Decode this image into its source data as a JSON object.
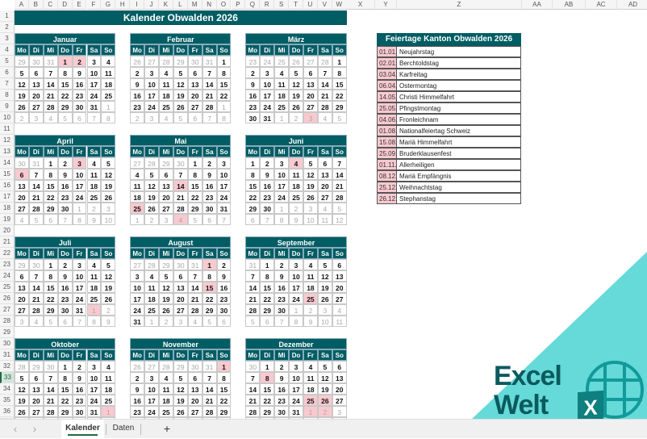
{
  "columns": [
    "A",
    "B",
    "C",
    "D",
    "E",
    "F",
    "G",
    "H",
    "I",
    "J",
    "K",
    "L",
    "M",
    "N",
    "O",
    "P",
    "Q",
    "R",
    "S",
    "T",
    "U",
    "V",
    "W",
    "X",
    "Y",
    "Z",
    "AA",
    "AB",
    "AC",
    "AD"
  ],
  "active_row": 33,
  "title": "Kalender Obwalden 2026",
  "year": 2026,
  "weekdays": [
    "Mo",
    "Di",
    "Mi",
    "Do",
    "Fr",
    "Sa",
    "So"
  ],
  "months": [
    "Januar",
    "Februar",
    "März",
    "April",
    "Mai",
    "Juni",
    "Juli",
    "August",
    "September",
    "Oktober",
    "November",
    "Dezember"
  ],
  "holidays": {
    "title": "Feiertage Kanton Obwalden 2026",
    "items": [
      {
        "date": "01.01.",
        "name": "Neujahrstag"
      },
      {
        "date": "02.01.",
        "name": "Berchtoldstag"
      },
      {
        "date": "03.04.",
        "name": "Karfreitag"
      },
      {
        "date": "06.04.",
        "name": "Ostermontag"
      },
      {
        "date": "14.05.",
        "name": "Christi Himmelfahrt"
      },
      {
        "date": "25.05.",
        "name": "Pfingstmontag"
      },
      {
        "date": "04.06.",
        "name": "Fronleichnam"
      },
      {
        "date": "01.08.",
        "name": "Nationalfeiertag Schweiz"
      },
      {
        "date": "15.08.",
        "name": "Mariä Himmelfahrt"
      },
      {
        "date": "25.09.",
        "name": "Bruderklausenfest"
      },
      {
        "date": "01.11.",
        "name": "Allerheiligen"
      },
      {
        "date": "08.12.",
        "name": "Mariä Empfängnis"
      },
      {
        "date": "25.12.",
        "name": "Weihnachtstag"
      },
      {
        "date": "26.12.",
        "name": "Stephanstag"
      }
    ]
  },
  "colors": {
    "header": "#005d63",
    "holiday": "#f9c9cf",
    "logo_bg": "#66d9d9",
    "logo_text": "#0b5a5e"
  },
  "logo": {
    "line1": "Excel",
    "line2": "Welt",
    "badge": "X"
  },
  "sheet_tabs": [
    {
      "label": "Kalender",
      "active": true
    },
    {
      "label": "Daten",
      "active": false
    }
  ],
  "add_sheet": "+",
  "nav_prev": "‹",
  "nav_next": "›"
}
